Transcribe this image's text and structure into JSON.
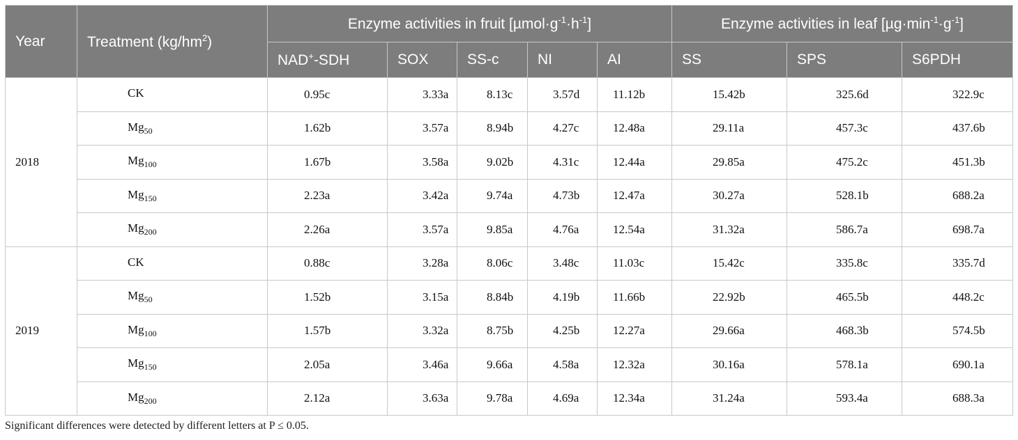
{
  "header": {
    "year": "Year",
    "treatment_prefix": "Treatment (kg/hm",
    "treatment_sup": "2",
    "treatment_suffix": ")",
    "fruit_group": {
      "prefix": "Enzyme activities in fruit [µmol·g",
      "sup1": "-1",
      "mid": "·h",
      "sup2": "-1",
      "suffix": "]"
    },
    "leaf_group": {
      "prefix": "Enzyme activities in leaf [µg·min",
      "sup1": "-1",
      "mid": "·g",
      "sup2": "-1",
      "suffix": "]"
    },
    "col_nad_base": "NAD",
    "col_nad_sup": "+",
    "col_nad_suffix": "-SDH",
    "columns": [
      "SOX",
      "SS-c",
      "NI",
      "AI",
      "SS",
      "SPS",
      "S6PDH"
    ]
  },
  "rows": [
    {
      "year": "2018",
      "t_base": "CK",
      "t_sub": "",
      "v": [
        "0.95c",
        "3.33a",
        "8.13c",
        "3.57d",
        "11.12b",
        "15.42b",
        "325.6d",
        "322.9c"
      ]
    },
    {
      "year": "",
      "t_base": "Mg",
      "t_sub": "50",
      "v": [
        "1.62b",
        "3.57a",
        "8.94b",
        "4.27c",
        "12.48a",
        "29.11a",
        "457.3c",
        "437.6b"
      ]
    },
    {
      "year": "",
      "t_base": "Mg",
      "t_sub": "100",
      "v": [
        "1.67b",
        "3.58a",
        "9.02b",
        "4.31c",
        "12.44a",
        "29.85a",
        "475.2c",
        "451.3b"
      ]
    },
    {
      "year": "",
      "t_base": "Mg",
      "t_sub": "150",
      "v": [
        "2.23a",
        "3.42a",
        "9.74a",
        "4.73b",
        "12.47a",
        "30.27a",
        "528.1b",
        "688.2a"
      ]
    },
    {
      "year": "",
      "t_base": "Mg",
      "t_sub": "200",
      "v": [
        "2.26a",
        "3.57a",
        "9.85a",
        "4.76a",
        "12.54a",
        "31.32a",
        "586.7a",
        "698.7a"
      ]
    },
    {
      "year": "2019",
      "t_base": "CK",
      "t_sub": "",
      "v": [
        "0.88c",
        "3.28a",
        "8.06c",
        "3.48c",
        "11.03c",
        "15.42c",
        "335.8c",
        "335.7d"
      ]
    },
    {
      "year": "",
      "t_base": "Mg",
      "t_sub": "50",
      "v": [
        "1.52b",
        "3.15a",
        "8.84b",
        "4.19b",
        "11.66b",
        "22.92b",
        "465.5b",
        "448.2c"
      ]
    },
    {
      "year": "",
      "t_base": "Mg",
      "t_sub": "100",
      "v": [
        "1.57b",
        "3.32a",
        "8.75b",
        "4.25b",
        "12.27a",
        "29.66a",
        "468.3b",
        "574.5b"
      ]
    },
    {
      "year": "",
      "t_base": "Mg",
      "t_sub": "150",
      "v": [
        "2.05a",
        "3.46a",
        "9.66a",
        "4.58a",
        "12.32a",
        "30.16a",
        "578.1a",
        "690.1a"
      ]
    },
    {
      "year": "",
      "t_base": "Mg",
      "t_sub": "200",
      "v": [
        "2.12a",
        "3.63a",
        "9.78a",
        "4.69a",
        "12.34a",
        "31.24a",
        "593.4a",
        "688.3a"
      ]
    }
  ],
  "footnote": "Significant differences were detected by different letters at P ≤ 0.05."
}
